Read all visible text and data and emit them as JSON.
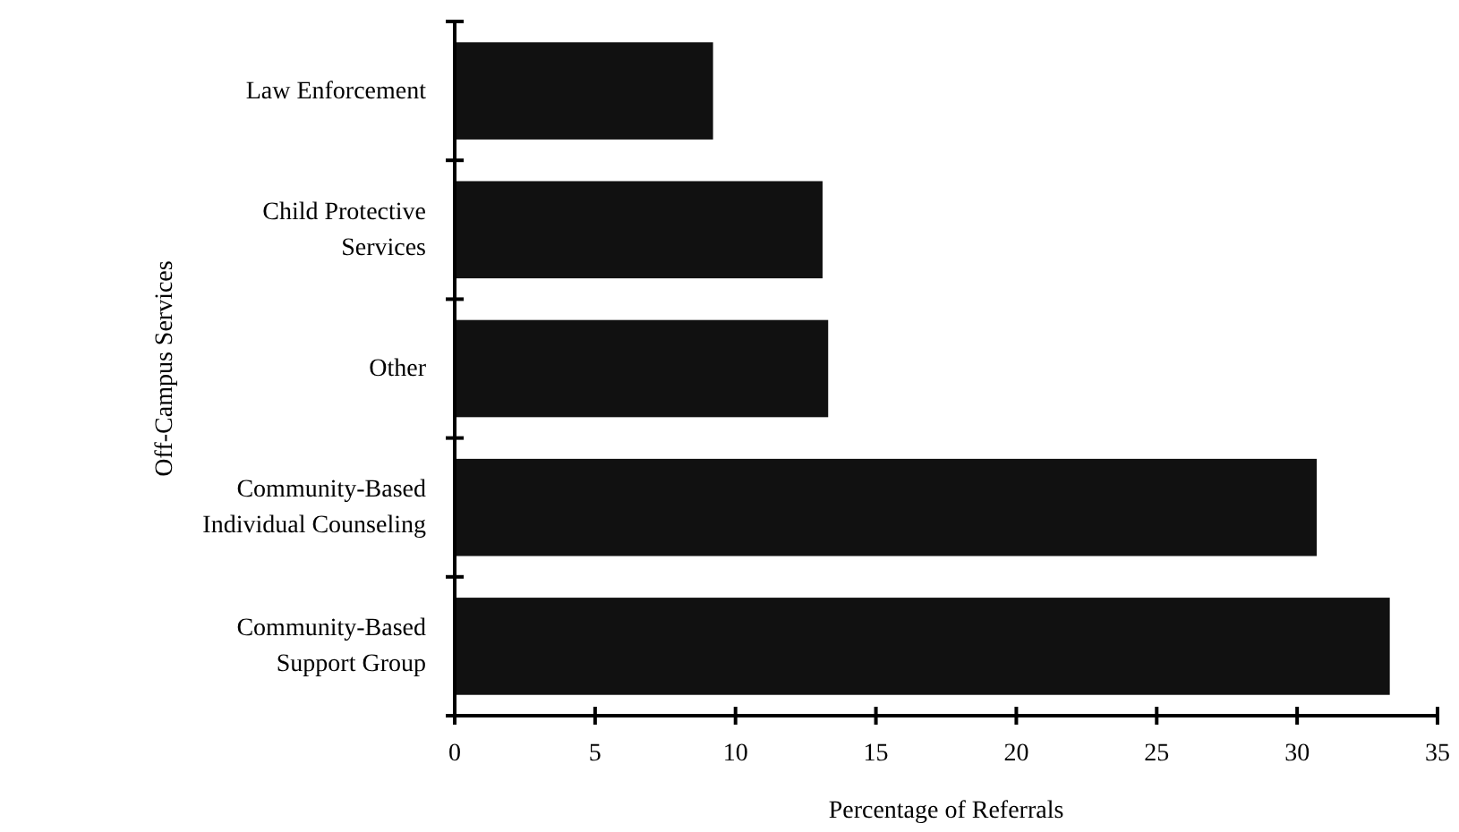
{
  "chart_data": {
    "type": "bar",
    "orientation": "horizontal",
    "xlabel": "Percentage of Referrals",
    "ylabel": "Off-Campus Services",
    "categories": [
      "Law Enforcement",
      "Child Protective\nServices",
      "Other",
      "Community-Based\nIndividual Counseling",
      "Community-Based\nSupport Group"
    ],
    "values": [
      9.2,
      13.1,
      13.3,
      30.7,
      33.3
    ],
    "color": "#111111",
    "xlim": [
      0,
      35
    ],
    "xticks": [
      0,
      5,
      10,
      15,
      20,
      25,
      30,
      35
    ],
    "grid": false
  }
}
